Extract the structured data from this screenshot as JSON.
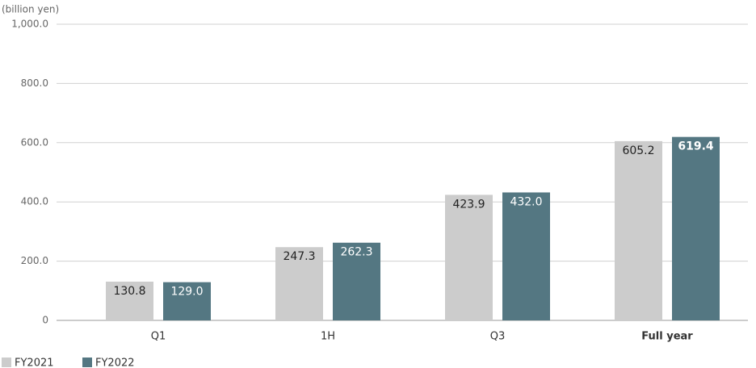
{
  "chart_data": {
    "type": "bar",
    "y_axis_label": "(billion yen)",
    "categories": [
      "Q1",
      "1H",
      "Q3",
      "Full year"
    ],
    "series": [
      {
        "name": "FY2021",
        "color": "#cccccc",
        "values": [
          130.8,
          247.3,
          423.9,
          605.2
        ],
        "value_labels": [
          "130.8",
          "247.3",
          "423.9",
          "605.2"
        ]
      },
      {
        "name": "FY2022",
        "color": "#547782",
        "values": [
          129.0,
          262.3,
          432.0,
          619.4
        ],
        "value_labels": [
          "129.0",
          "262.3",
          "432.0",
          "619.4"
        ]
      }
    ],
    "ylim": [
      0,
      1000
    ],
    "yticks": [
      0,
      {
        "value": 200,
        "label": "200.0"
      },
      {
        "value": 400,
        "label": "400.0"
      },
      {
        "value": 600,
        "label": "600.0"
      },
      {
        "value": 800,
        "label": "800.0"
      },
      {
        "value": 1000,
        "label": "1,000.0"
      }
    ],
    "grid": true,
    "legend": "bottom-left"
  }
}
